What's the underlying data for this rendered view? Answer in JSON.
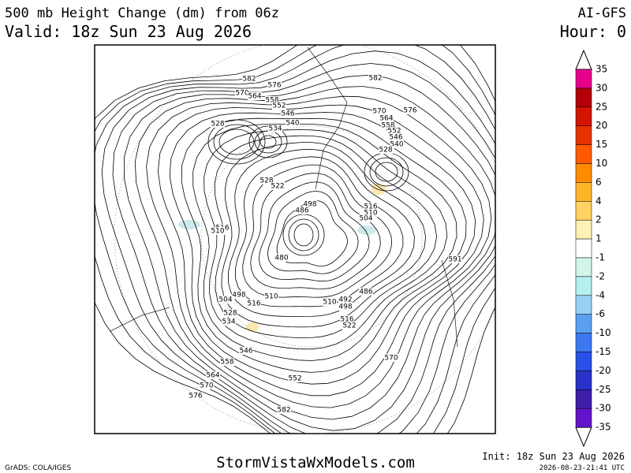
{
  "header": {
    "title": "500 mb Height Change (dm) from 06z",
    "valid": "Valid: 18z Sun 23 Aug 2026",
    "model": "AI-GFS",
    "hour": "Hour: 0"
  },
  "colorbar": {
    "levels": [
      35,
      30,
      25,
      20,
      15,
      10,
      6,
      4,
      2,
      1,
      -1,
      -2,
      -4,
      -6,
      -10,
      -15,
      -20,
      -25,
      -30,
      -35
    ],
    "colors": [
      "#e6008c",
      "#b4000a",
      "#d21400",
      "#e63200",
      "#ff5a00",
      "#ff8c00",
      "#ffb428",
      "#ffd264",
      "#fff0b4",
      "#ffffff",
      "#d2f5eb",
      "#b4f0f0",
      "#96d2f5",
      "#5aa0f0",
      "#3c78f0",
      "#2850e6",
      "#2832c8",
      "#3c1eaa",
      "#6414c8"
    ]
  },
  "contour_labels": [
    "582",
    "576",
    "570",
    "564",
    "558",
    "552",
    "546",
    "540",
    "534",
    "528",
    "582",
    "570",
    "576",
    "564",
    "558",
    "552",
    "546",
    "540",
    "528",
    "528",
    "522",
    "516",
    "510",
    "498",
    "486",
    "480",
    "516",
    "510",
    "504",
    "591",
    "486",
    "510",
    "516",
    "504",
    "498",
    "510",
    "492",
    "498",
    "516",
    "522",
    "528",
    "534",
    "546",
    "558",
    "564",
    "570",
    "576",
    "552",
    "570",
    "582"
  ],
  "footer": {
    "grads": "GrADS: COLA/IGES",
    "site": "StormVistaWxModels.com",
    "init": "Init: 18z Sun 23 Aug 2026",
    "stamp": "2026-08-23-21:41 UTC"
  }
}
